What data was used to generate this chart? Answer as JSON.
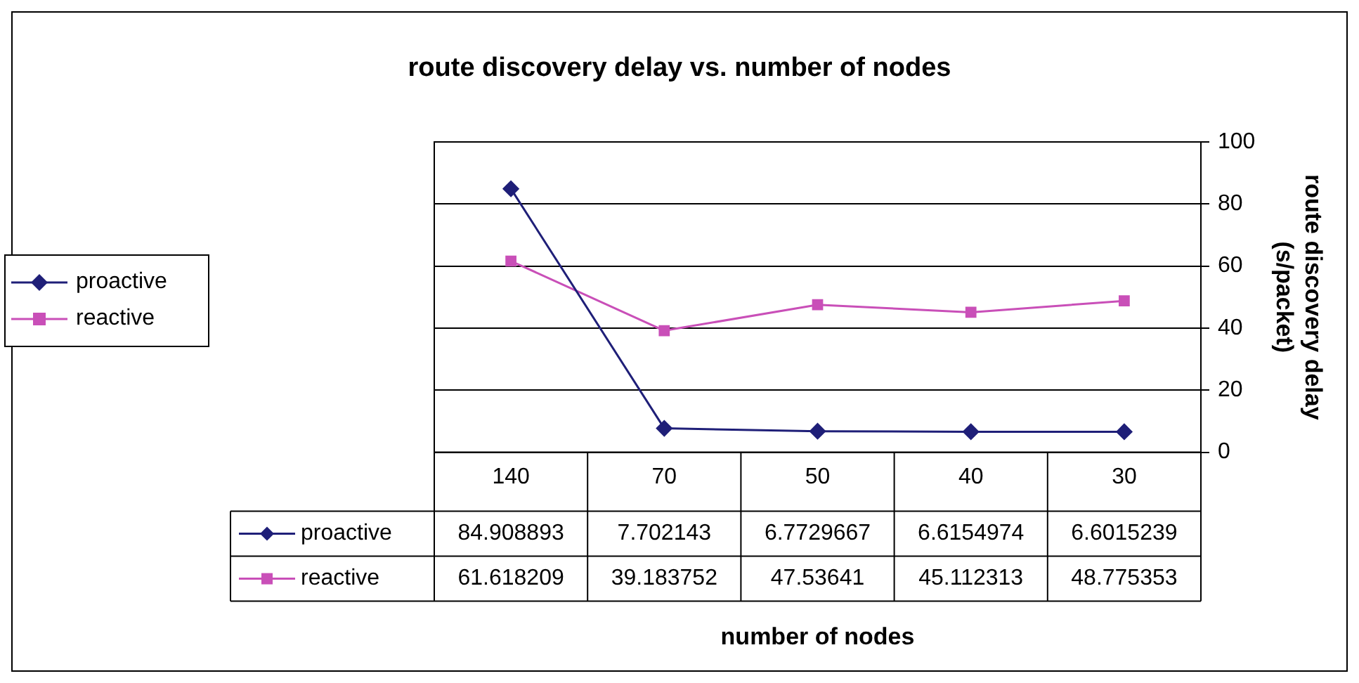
{
  "chart_data": {
    "type": "line",
    "title": "route discovery delay vs. number of nodes",
    "annotations": [
      "number of nodes"
    ],
    "ylabel": "route discovery delay (s/packet)",
    "categories": [
      "140",
      "70",
      "50",
      "40",
      "30"
    ],
    "series": [
      {
        "name": "proactive",
        "color": "#1f1f78",
        "marker": "diamond",
        "values": [
          84.908893,
          7.702143,
          6.7729667,
          6.6154974,
          6.6015239
        ]
      },
      {
        "name": "reactive",
        "color": "#c94fb8",
        "marker": "square",
        "values": [
          61.618209,
          39.183752,
          47.53641,
          45.112313,
          48.775353
        ]
      }
    ],
    "ylim": [
      0,
      100
    ],
    "yticks": [
      0,
      20,
      40,
      60,
      80,
      100
    ],
    "grid": "y",
    "legend": "left",
    "data_labels": true
  }
}
